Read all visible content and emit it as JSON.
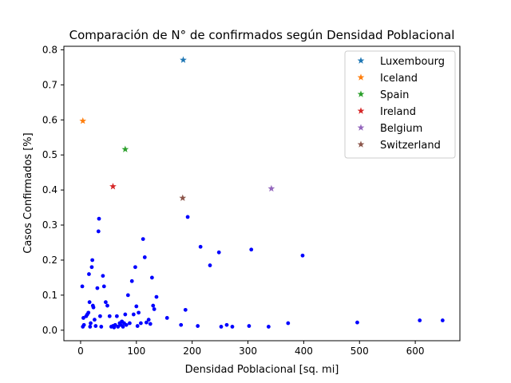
{
  "chart_data": {
    "type": "scatter",
    "title": "Comparación de N° de confirmados según Densidad Poblacional",
    "xlabel": "Densidad Poblacional [sq. mi]",
    "ylabel": "Casos Confirmados [%]",
    "xlim": [
      -30,
      680
    ],
    "ylim": [
      -0.03,
      0.81
    ],
    "xticks": [
      0,
      100,
      200,
      300,
      400,
      500,
      600
    ],
    "yticks": [
      0.0,
      0.1,
      0.2,
      0.3,
      0.4,
      0.5,
      0.6,
      0.7,
      0.8
    ],
    "xtick_labels": [
      "0",
      "100",
      "200",
      "300",
      "400",
      "500",
      "600"
    ],
    "ytick_labels": [
      "0.0",
      "0.1",
      "0.2",
      "0.3",
      "0.4",
      "0.5",
      "0.6",
      "0.7",
      "0.8"
    ],
    "grid": false,
    "legend_position": "top-right",
    "series": [
      {
        "name": "",
        "marker": "circle",
        "color": "#0000ff",
        "points": [
          [
            3,
            0.125
          ],
          [
            4,
            0.01
          ],
          [
            5,
            0.035
          ],
          [
            6,
            0.015
          ],
          [
            10,
            0.04
          ],
          [
            12,
            0.045
          ],
          [
            14,
            0.05
          ],
          [
            15,
            0.16
          ],
          [
            16,
            0.08
          ],
          [
            17,
            0.01
          ],
          [
            18,
            0.02
          ],
          [
            20,
            0.18
          ],
          [
            21,
            0.2
          ],
          [
            22,
            0.07
          ],
          [
            23,
            0.065
          ],
          [
            25,
            0.03
          ],
          [
            27,
            0.012
          ],
          [
            30,
            0.12
          ],
          [
            32,
            0.282
          ],
          [
            33,
            0.318
          ],
          [
            35,
            0.04
          ],
          [
            37,
            0.01
          ],
          [
            40,
            0.155
          ],
          [
            42,
            0.125
          ],
          [
            45,
            0.08
          ],
          [
            48,
            0.07
          ],
          [
            52,
            0.04
          ],
          [
            55,
            0.01
          ],
          [
            58,
            0.012
          ],
          [
            60,
            0.008
          ],
          [
            62,
            0.015
          ],
          [
            65,
            0.04
          ],
          [
            67,
            0.01
          ],
          [
            70,
            0.02
          ],
          [
            72,
            0.015
          ],
          [
            74,
            0.025
          ],
          [
            76,
            0.01
          ],
          [
            78,
            0.02
          ],
          [
            80,
            0.045
          ],
          [
            82,
            0.015
          ],
          [
            85,
            0.1
          ],
          [
            88,
            0.02
          ],
          [
            92,
            0.14
          ],
          [
            95,
            0.045
          ],
          [
            98,
            0.18
          ],
          [
            100,
            0.068
          ],
          [
            102,
            0.012
          ],
          [
            104,
            0.05
          ],
          [
            108,
            0.02
          ],
          [
            112,
            0.26
          ],
          [
            115,
            0.208
          ],
          [
            118,
            0.022
          ],
          [
            122,
            0.03
          ],
          [
            125,
            0.018
          ],
          [
            128,
            0.15
          ],
          [
            130,
            0.07
          ],
          [
            132,
            0.06
          ],
          [
            136,
            0.095
          ],
          [
            155,
            0.035
          ],
          [
            180,
            0.015
          ],
          [
            188,
            0.058
          ],
          [
            192,
            0.323
          ],
          [
            210,
            0.012
          ],
          [
            215,
            0.238
          ],
          [
            232,
            0.185
          ],
          [
            248,
            0.222
          ],
          [
            252,
            0.01
          ],
          [
            262,
            0.015
          ],
          [
            272,
            0.01
          ],
          [
            302,
            0.012
          ],
          [
            306,
            0.23
          ],
          [
            337,
            0.01
          ],
          [
            372,
            0.02
          ],
          [
            398,
            0.213
          ],
          [
            496,
            0.022
          ],
          [
            608,
            0.028
          ],
          [
            649,
            0.028
          ]
        ]
      },
      {
        "name": "Luxembourg",
        "marker": "star",
        "color": "#1f77b4",
        "points": [
          [
            184,
            0.771
          ]
        ]
      },
      {
        "name": "Iceland",
        "marker": "star",
        "color": "#ff7f0e",
        "points": [
          [
            4,
            0.597
          ]
        ]
      },
      {
        "name": "Spain",
        "marker": "star",
        "color": "#2ca02c",
        "points": [
          [
            80,
            0.516
          ]
        ]
      },
      {
        "name": "Ireland",
        "marker": "star",
        "color": "#d62728",
        "points": [
          [
            58,
            0.41
          ]
        ]
      },
      {
        "name": "Belgium",
        "marker": "star",
        "color": "#9467bd",
        "points": [
          [
            342,
            0.404
          ]
        ]
      },
      {
        "name": "Switzerland",
        "marker": "star",
        "color": "#8c564b",
        "points": [
          [
            183,
            0.377
          ]
        ]
      }
    ]
  }
}
